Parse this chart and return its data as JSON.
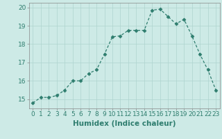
{
  "x": [
    0,
    1,
    2,
    3,
    4,
    5,
    6,
    7,
    8,
    9,
    10,
    11,
    12,
    13,
    14,
    15,
    16,
    17,
    18,
    19,
    20,
    21,
    22,
    23
  ],
  "y": [
    14.8,
    15.1,
    15.1,
    15.2,
    15.5,
    16.0,
    16.0,
    16.4,
    16.6,
    17.45,
    18.4,
    18.45,
    18.75,
    18.75,
    18.75,
    19.85,
    19.9,
    19.5,
    19.1,
    19.35,
    18.45,
    17.45,
    16.6,
    15.5
  ],
  "line_color": "#2e7d6e",
  "marker": "D",
  "marker_size": 2.5,
  "background_color": "#cdeae6",
  "grid_color": "#aed4cf",
  "xlabel": "Humidex (Indice chaleur)",
  "xlim": [
    -0.5,
    23.5
  ],
  "ylim": [
    14.5,
    20.25
  ],
  "yticks": [
    15,
    16,
    17,
    18,
    19,
    20
  ],
  "xticks": [
    0,
    1,
    2,
    3,
    4,
    5,
    6,
    7,
    8,
    9,
    10,
    11,
    12,
    13,
    14,
    15,
    16,
    17,
    18,
    19,
    20,
    21,
    22,
    23
  ],
  "xlabel_fontsize": 7.5,
  "tick_fontsize": 6.5
}
